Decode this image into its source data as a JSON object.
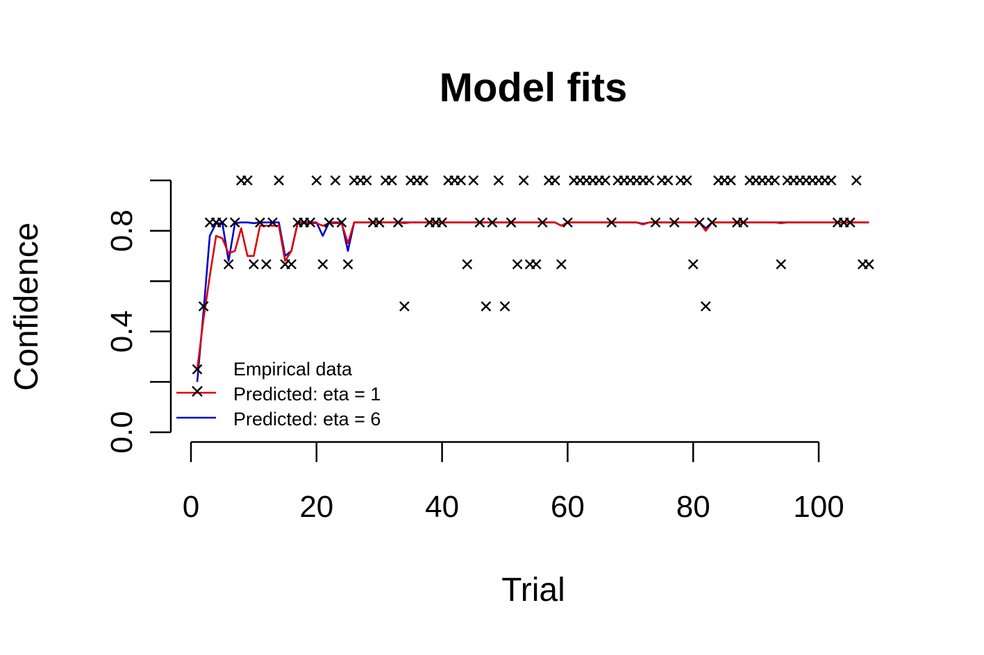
{
  "chart_data": {
    "type": "scatter",
    "title": "Model fits",
    "xlabel": "Trial",
    "ylabel": "Confidence",
    "xlim": [
      -1,
      108
    ],
    "ylim": [
      0,
      1
    ],
    "xticks": [
      0,
      20,
      40,
      60,
      80,
      100
    ],
    "xtick_labels": [
      "0",
      "20",
      "40",
      "60",
      "80",
      "100"
    ],
    "yticks": [
      0,
      0.2,
      0.4,
      0.6,
      0.8,
      1.0
    ],
    "ytick_labels": [
      "0.0",
      "",
      "0.4",
      "",
      "0.8",
      ""
    ],
    "legend": {
      "position": "bottom-left",
      "entries": [
        {
          "label": "Empirical data",
          "marker": "x",
          "color": "#000000"
        },
        {
          "label": "Predicted: eta = 1",
          "line": true,
          "color": "#e00000"
        },
        {
          "label": "Predicted: eta = 6",
          "line": true,
          "color": "#0000cc"
        }
      ]
    },
    "empirical": {
      "name": "Empirical data",
      "x": [
        1,
        2,
        3,
        4,
        5,
        6,
        7,
        8,
        9,
        10,
        11,
        12,
        13,
        14,
        15,
        16,
        17,
        18,
        19,
        20,
        21,
        22,
        23,
        24,
        25,
        26,
        27,
        28,
        29,
        30,
        31,
        32,
        33,
        34,
        35,
        36,
        37,
        38,
        39,
        40,
        41,
        42,
        43,
        44,
        45,
        46,
        47,
        48,
        49,
        50,
        51,
        52,
        53,
        54,
        55,
        56,
        57,
        58,
        59,
        60,
        61,
        62,
        63,
        64,
        65,
        66,
        67,
        68,
        69,
        70,
        71,
        72,
        73,
        74,
        75,
        76,
        77,
        78,
        79,
        80,
        81,
        82,
        83,
        84,
        85,
        86,
        87,
        88,
        89,
        90,
        91,
        92,
        93,
        94,
        95,
        96,
        97,
        98,
        99,
        100,
        101,
        102,
        103,
        104,
        105,
        106,
        107,
        108
      ],
      "y": [
        0.25,
        0.5,
        0.833,
        0.833,
        0.833,
        0.667,
        0.833,
        1,
        1,
        0.667,
        0.833,
        0.667,
        0.833,
        1,
        0.667,
        0.667,
        0.833,
        0.833,
        0.833,
        1,
        0.667,
        0.833,
        1,
        0.833,
        0.667,
        1,
        1,
        1,
        0.833,
        0.833,
        1,
        1,
        0.833,
        0.5,
        1,
        1,
        1,
        0.833,
        0.833,
        0.833,
        1,
        1,
        1,
        0.667,
        1,
        0.833,
        0.5,
        0.833,
        1,
        0.5,
        0.833,
        0.667,
        1,
        0.667,
        0.667,
        0.833,
        1,
        1,
        0.667,
        0.833,
        1,
        1,
        1,
        1,
        1,
        1,
        0.833,
        1,
        1,
        1,
        1,
        1,
        1,
        0.833,
        1,
        1,
        0.833,
        1,
        1,
        0.667,
        0.833,
        0.5,
        0.833,
        1,
        1,
        1,
        0.833,
        0.833,
        1,
        1,
        1,
        1,
        1,
        0.667,
        1,
        1,
        1,
        1,
        1,
        1,
        1,
        1,
        0.833,
        0.833,
        0.833,
        1,
        0.667,
        0.667
      ]
    },
    "series": [
      {
        "name": "Predicted: eta = 1",
        "color": "#e00000",
        "x": [
          1,
          2,
          3,
          4,
          5,
          6,
          7,
          8,
          9,
          10,
          11,
          12,
          13,
          14,
          15,
          16,
          17,
          18,
          19,
          20,
          21,
          22,
          23,
          24,
          25,
          26,
          27,
          28,
          29,
          30,
          31,
          32,
          33,
          34,
          35,
          36,
          37,
          38,
          39,
          40,
          41,
          42,
          43,
          44,
          45,
          46,
          47,
          48,
          49,
          50,
          51,
          52,
          53,
          54,
          55,
          56,
          57,
          58,
          59,
          60,
          61,
          62,
          63,
          64,
          65,
          66,
          67,
          68,
          69,
          70,
          71,
          72,
          73,
          74,
          75,
          76,
          77,
          78,
          79,
          80,
          81,
          82,
          83,
          84,
          85,
          86,
          87,
          88,
          89,
          90,
          91,
          92,
          93,
          94,
          95,
          96,
          97,
          98,
          99,
          100,
          101,
          102,
          103,
          104,
          105,
          106,
          107,
          108
        ],
        "y": [
          0.25,
          0.45,
          0.62,
          0.78,
          0.77,
          0.71,
          0.72,
          0.81,
          0.7,
          0.7,
          0.82,
          0.82,
          0.82,
          0.82,
          0.68,
          0.72,
          0.83,
          0.83,
          0.83,
          0.83,
          0.82,
          0.83,
          0.83,
          0.83,
          0.75,
          0.833,
          0.833,
          0.833,
          0.833,
          0.833,
          0.833,
          0.833,
          0.833,
          0.83,
          0.833,
          0.833,
          0.833,
          0.833,
          0.833,
          0.833,
          0.833,
          0.833,
          0.833,
          0.833,
          0.833,
          0.833,
          0.833,
          0.833,
          0.833,
          0.833,
          0.833,
          0.833,
          0.833,
          0.833,
          0.833,
          0.833,
          0.833,
          0.833,
          0.82,
          0.833,
          0.833,
          0.833,
          0.833,
          0.833,
          0.833,
          0.833,
          0.833,
          0.833,
          0.833,
          0.833,
          0.833,
          0.825,
          0.833,
          0.833,
          0.833,
          0.833,
          0.833,
          0.833,
          0.833,
          0.833,
          0.833,
          0.8,
          0.833,
          0.833,
          0.833,
          0.833,
          0.833,
          0.833,
          0.833,
          0.833,
          0.833,
          0.833,
          0.833,
          0.83,
          0.833,
          0.833,
          0.833,
          0.833,
          0.833,
          0.833,
          0.833,
          0.833,
          0.833,
          0.833,
          0.833,
          0.833,
          0.833,
          0.833
        ]
      },
      {
        "name": "Predicted: eta = 6",
        "color": "#0000cc",
        "x": [
          1,
          2,
          3,
          4,
          5,
          6,
          7,
          8,
          9,
          10,
          11,
          12,
          13,
          14,
          15,
          16,
          17,
          18,
          19,
          20,
          21,
          22,
          23,
          24,
          25,
          26,
          27,
          28,
          29,
          30,
          31,
          32,
          33,
          34,
          35,
          36,
          37,
          38,
          39,
          40,
          41,
          42,
          43,
          44,
          45,
          46,
          47,
          48,
          49,
          50,
          51,
          52,
          53,
          54,
          55,
          56,
          57,
          58,
          59,
          60,
          61,
          62,
          63,
          64,
          65,
          66,
          67,
          68,
          69,
          70,
          71,
          72,
          73,
          74,
          75,
          76,
          77,
          78,
          79,
          80,
          81,
          82,
          83,
          84,
          85,
          86,
          87,
          88,
          89,
          90,
          91,
          92,
          93,
          94,
          95,
          96,
          97,
          98,
          99,
          100,
          101,
          102,
          103,
          104,
          105,
          106,
          107,
          108
        ],
        "y": [
          0.2,
          0.48,
          0.78,
          0.83,
          0.83,
          0.68,
          0.83,
          0.833,
          0.833,
          0.83,
          0.833,
          0.833,
          0.833,
          0.833,
          0.7,
          0.72,
          0.833,
          0.833,
          0.833,
          0.833,
          0.78,
          0.833,
          0.833,
          0.833,
          0.72,
          0.833,
          0.833,
          0.833,
          0.833,
          0.833,
          0.833,
          0.833,
          0.833,
          0.833,
          0.833,
          0.833,
          0.833,
          0.833,
          0.833,
          0.833,
          0.833,
          0.833,
          0.833,
          0.833,
          0.833,
          0.833,
          0.833,
          0.833,
          0.833,
          0.833,
          0.833,
          0.833,
          0.833,
          0.833,
          0.833,
          0.833,
          0.833,
          0.833,
          0.82,
          0.833,
          0.833,
          0.833,
          0.833,
          0.833,
          0.833,
          0.833,
          0.833,
          0.833,
          0.833,
          0.833,
          0.833,
          0.828,
          0.833,
          0.833,
          0.833,
          0.833,
          0.833,
          0.833,
          0.833,
          0.833,
          0.833,
          0.81,
          0.833,
          0.833,
          0.833,
          0.833,
          0.833,
          0.833,
          0.833,
          0.833,
          0.833,
          0.833,
          0.833,
          0.833,
          0.833,
          0.833,
          0.833,
          0.833,
          0.833,
          0.833,
          0.833,
          0.833,
          0.833,
          0.833,
          0.833,
          0.833,
          0.833,
          0.833
        ]
      }
    ]
  }
}
